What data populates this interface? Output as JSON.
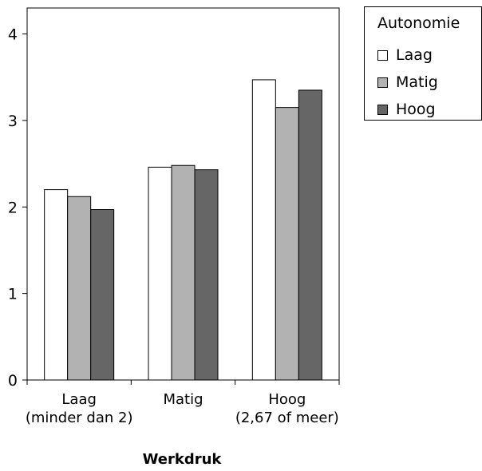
{
  "chart_data": {
    "type": "bar",
    "categories": [
      "Laag\n(minder dan 2)",
      "Matig",
      "Hoog\n(2,67 of meer)"
    ],
    "series": [
      {
        "name": "Laag",
        "color": "#ffffff",
        "values": [
          2.2,
          2.46,
          3.47
        ]
      },
      {
        "name": "Matig",
        "color": "#b2b2b2",
        "values": [
          2.12,
          2.48,
          3.15
        ]
      },
      {
        "name": "Hoog",
        "color": "#666666",
        "values": [
          1.97,
          2.43,
          3.35
        ]
      }
    ],
    "yticks": [
      "0",
      "1",
      "2",
      "3",
      "4"
    ],
    "ylim": [
      0,
      4.3
    ],
    "xlabel": "Werkdruk",
    "ylabel": "",
    "legend_title": "Autonomie",
    "legend_position": "top-right",
    "grid": false
  }
}
